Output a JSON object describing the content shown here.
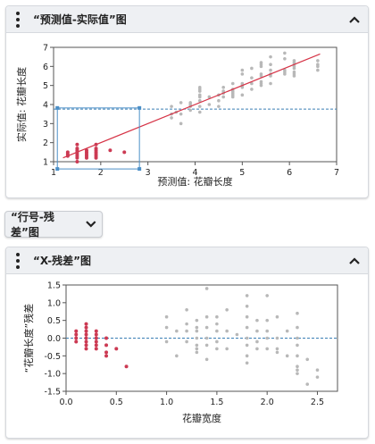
{
  "card1": {
    "title": "“预测值-实际值”图",
    "chart_data": {
      "type": "scatter",
      "xlabel": "预测值: 花瓣长度",
      "ylabel": "实际值: 花瓣长度",
      "xlim": [
        1,
        7
      ],
      "ylim": [
        1,
        7
      ],
      "xticks": [
        "1",
        "2",
        "3",
        "4",
        "5",
        "6",
        "7"
      ],
      "yticks": [
        "1",
        "2",
        "3",
        "4",
        "5",
        "6",
        "7"
      ],
      "reference_line_y": 3.76,
      "fit_line": [
        [
          1.2,
          1.2
        ],
        [
          6.65,
          6.65
        ]
      ],
      "selection_box": {
        "x": [
          1.08,
          2.82
        ],
        "y": [
          0.62,
          3.82
        ]
      },
      "selected_color": "#cc3a53",
      "unselected_color": "#b8b8b8",
      "fit_color": "#d63447",
      "ref_color": "#3a7fb5",
      "selected_points": [
        [
          1.3,
          1.4
        ],
        [
          1.3,
          1.5
        ],
        [
          1.3,
          1.3
        ],
        [
          1.5,
          1.2
        ],
        [
          1.5,
          1.4
        ],
        [
          1.5,
          1.5
        ],
        [
          1.5,
          1.6
        ],
        [
          1.5,
          1.7
        ],
        [
          1.5,
          1.9
        ],
        [
          1.5,
          1.3
        ],
        [
          1.5,
          1.0
        ],
        [
          1.7,
          1.4
        ],
        [
          1.7,
          1.5
        ],
        [
          1.7,
          1.6
        ],
        [
          1.7,
          1.2
        ],
        [
          1.7,
          1.3
        ],
        [
          1.9,
          1.4
        ],
        [
          1.9,
          1.5
        ],
        [
          1.9,
          1.6
        ],
        [
          1.9,
          1.7
        ],
        [
          1.9,
          1.9
        ],
        [
          1.9,
          1.3
        ],
        [
          1.9,
          1.2
        ],
        [
          2.2,
          1.6
        ],
        [
          2.5,
          1.5
        ]
      ],
      "unselected_points": [
        [
          3.5,
          3.5
        ],
        [
          3.5,
          3.9
        ],
        [
          3.5,
          3.3
        ],
        [
          3.6,
          3.6
        ],
        [
          3.7,
          3.5
        ],
        [
          3.7,
          3.0
        ],
        [
          3.7,
          4.1
        ],
        [
          3.9,
          3.7
        ],
        [
          3.9,
          3.9
        ],
        [
          3.9,
          4.0
        ],
        [
          3.9,
          4.1
        ],
        [
          4.1,
          3.6
        ],
        [
          4.1,
          3.9
        ],
        [
          4.1,
          4.2
        ],
        [
          4.1,
          4.4
        ],
        [
          4.1,
          4.5
        ],
        [
          4.1,
          4.7
        ],
        [
          4.1,
          4.8
        ],
        [
          4.1,
          4.9
        ],
        [
          4.3,
          4.0
        ],
        [
          4.3,
          4.4
        ],
        [
          4.5,
          4.5
        ],
        [
          4.5,
          4.2
        ],
        [
          4.5,
          3.9
        ],
        [
          4.6,
          4.4
        ],
        [
          4.6,
          4.6
        ],
        [
          4.6,
          4.7
        ],
        [
          4.6,
          4.9
        ],
        [
          4.8,
          4.5
        ],
        [
          4.8,
          4.7
        ],
        [
          4.8,
          4.8
        ],
        [
          4.8,
          5.1
        ],
        [
          4.8,
          4.4
        ],
        [
          4.8,
          4.6
        ],
        [
          5.0,
          4.9
        ],
        [
          5.0,
          5.0
        ],
        [
          5.0,
          5.1
        ],
        [
          5.0,
          4.5
        ],
        [
          5.0,
          5.6
        ],
        [
          5.0,
          5.8
        ],
        [
          5.2,
          4.8
        ],
        [
          5.2,
          5.1
        ],
        [
          5.2,
          5.4
        ],
        [
          5.2,
          5.9
        ],
        [
          5.4,
          5.0
        ],
        [
          5.4,
          5.1
        ],
        [
          5.4,
          5.2
        ],
        [
          5.4,
          5.5
        ],
        [
          5.4,
          5.6
        ],
        [
          5.4,
          6.0
        ],
        [
          5.4,
          6.1
        ],
        [
          5.4,
          6.2
        ],
        [
          5.6,
          5.1
        ],
        [
          5.6,
          5.5
        ],
        [
          5.6,
          5.6
        ],
        [
          5.6,
          5.8
        ],
        [
          5.6,
          6.1
        ],
        [
          5.6,
          6.5
        ],
        [
          5.9,
          5.6
        ],
        [
          5.9,
          5.7
        ],
        [
          5.9,
          5.8
        ],
        [
          5.9,
          6.4
        ],
        [
          5.9,
          6.7
        ],
        [
          6.1,
          5.5
        ],
        [
          6.1,
          5.6
        ],
        [
          6.1,
          5.7
        ],
        [
          6.1,
          5.9
        ],
        [
          6.1,
          6.0
        ],
        [
          6.1,
          6.1
        ],
        [
          6.1,
          6.2
        ],
        [
          6.1,
          6.3
        ],
        [
          6.6,
          5.8
        ],
        [
          6.6,
          6.0
        ],
        [
          6.6,
          6.1
        ],
        [
          6.6,
          6.3
        ]
      ]
    }
  },
  "button2": {
    "label": "“行号-残差”图"
  },
  "card3": {
    "title": "“X-残差”图",
    "chart_data": {
      "type": "scatter",
      "xlabel": "花瓣宽度",
      "ylabel": "“花瓣长度”残差",
      "xlim": [
        0,
        2.7
      ],
      "ylim": [
        -1.5,
        1.5
      ],
      "xticks": [
        "0.0",
        "0.5",
        "1.0",
        "1.5",
        "2.0",
        "2.5"
      ],
      "yticks": [
        "1.5",
        "1.0",
        "0.5",
        "0.0",
        "-0.5",
        "-1.0",
        "-1.5"
      ],
      "reference_line_y": 0,
      "selected_color": "#cc3a53",
      "unselected_color": "#b8b8b8",
      "ref_color": "#3a7fb5",
      "selected_points": [
        [
          0.1,
          0.2
        ],
        [
          0.1,
          0.1
        ],
        [
          0.1,
          0.0
        ],
        [
          0.1,
          -0.1
        ],
        [
          0.2,
          0.4
        ],
        [
          0.2,
          0.3
        ],
        [
          0.2,
          0.2
        ],
        [
          0.2,
          0.1
        ],
        [
          0.2,
          0.0
        ],
        [
          0.2,
          -0.1
        ],
        [
          0.2,
          -0.2
        ],
        [
          0.2,
          -0.3
        ],
        [
          0.3,
          0.2
        ],
        [
          0.3,
          0.1
        ],
        [
          0.3,
          0.0
        ],
        [
          0.3,
          -0.1
        ],
        [
          0.3,
          -0.2
        ],
        [
          0.3,
          -0.3
        ],
        [
          0.4,
          0.0
        ],
        [
          0.4,
          -0.2
        ],
        [
          0.4,
          -0.4
        ],
        [
          0.4,
          -0.5
        ],
        [
          0.5,
          -0.3
        ],
        [
          0.6,
          -0.8
        ]
      ],
      "unselected_points": [
        [
          1.0,
          0.6
        ],
        [
          1.0,
          0.3
        ],
        [
          1.0,
          -0.1
        ],
        [
          1.1,
          0.2
        ],
        [
          1.1,
          -0.5
        ],
        [
          1.2,
          0.8
        ],
        [
          1.2,
          0.4
        ],
        [
          1.2,
          0.2
        ],
        [
          1.2,
          -0.1
        ],
        [
          1.3,
          0.5
        ],
        [
          1.3,
          0.3
        ],
        [
          1.3,
          0.2
        ],
        [
          1.3,
          0.0
        ],
        [
          1.3,
          -0.2
        ],
        [
          1.3,
          -0.3
        ],
        [
          1.3,
          -0.4
        ],
        [
          1.4,
          1.4
        ],
        [
          1.4,
          0.6
        ],
        [
          1.4,
          0.3
        ],
        [
          1.4,
          0.0
        ],
        [
          1.4,
          -0.2
        ],
        [
          1.4,
          -0.6
        ],
        [
          1.5,
          0.6
        ],
        [
          1.5,
          0.4
        ],
        [
          1.5,
          0.2
        ],
        [
          1.5,
          -0.1
        ],
        [
          1.5,
          -0.3
        ],
        [
          1.6,
          0.8
        ],
        [
          1.6,
          0.2
        ],
        [
          1.6,
          -0.3
        ],
        [
          1.7,
          0.1
        ],
        [
          1.8,
          1.2
        ],
        [
          1.8,
          0.9
        ],
        [
          1.8,
          0.6
        ],
        [
          1.8,
          0.3
        ],
        [
          1.8,
          0.0
        ],
        [
          1.8,
          -0.2
        ],
        [
          1.8,
          -0.5
        ],
        [
          1.8,
          -0.7
        ],
        [
          1.9,
          0.5
        ],
        [
          1.9,
          0.2
        ],
        [
          1.9,
          -0.1
        ],
        [
          1.9,
          -0.3
        ],
        [
          2.0,
          1.2
        ],
        [
          2.0,
          0.5
        ],
        [
          2.0,
          0.2
        ],
        [
          2.0,
          0.0
        ],
        [
          2.0,
          -0.3
        ],
        [
          2.1,
          0.6
        ],
        [
          2.1,
          0.0
        ],
        [
          2.1,
          -0.3
        ],
        [
          2.1,
          -0.4
        ],
        [
          2.2,
          0.2
        ],
        [
          2.2,
          -0.5
        ],
        [
          2.3,
          0.7
        ],
        [
          2.3,
          0.3
        ],
        [
          2.3,
          0.0
        ],
        [
          2.3,
          -0.2
        ],
        [
          2.3,
          -0.5
        ],
        [
          2.3,
          -0.8
        ],
        [
          2.3,
          -0.9
        ],
        [
          2.3,
          -1.0
        ],
        [
          2.4,
          -0.6
        ],
        [
          2.4,
          -1.3
        ],
        [
          2.5,
          -0.9
        ],
        [
          2.5,
          -1.1
        ]
      ]
    }
  }
}
